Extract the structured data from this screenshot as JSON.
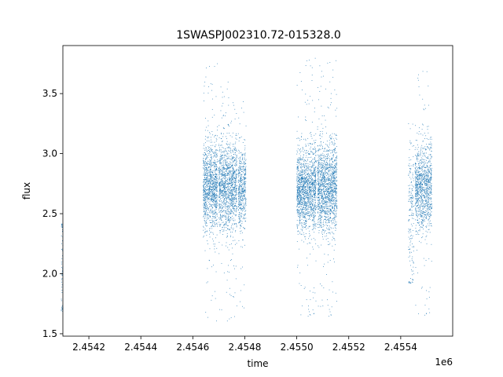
{
  "chart_data": {
    "type": "scatter",
    "title": "1SWASPJ002310.72-015328.0",
    "xlabel": "time",
    "ylabel": "flux",
    "x_offset_label": "1e6",
    "xlim": [
      2.4541,
      2.4556
    ],
    "ylim": [
      1.48,
      3.9
    ],
    "x_ticks": [
      2.4542,
      2.4544,
      2.4546,
      2.4548,
      2.455,
      2.4552,
      2.4554
    ],
    "x_tick_labels": [
      "2.4542",
      "2.4544",
      "2.4546",
      "2.4548",
      "2.4550",
      "2.4552",
      "2.4554"
    ],
    "y_ticks": [
      1.5,
      2.0,
      2.5,
      3.0,
      3.5
    ],
    "y_tick_labels": [
      "1.5",
      "2.0",
      "2.5",
      "3.0",
      "3.5"
    ],
    "grid": false,
    "marker_color": "#1f77b4",
    "clusters": [
      {
        "x_range": [
          2.454094,
          2.4541
        ],
        "y_center": 2.05,
        "y_spread": 0.35,
        "y_min": 1.68,
        "y_max": 2.43,
        "count": 60
      },
      {
        "x_range": [
          2.45464,
          2.454695
        ],
        "y_center": 2.72,
        "y_spread": 0.18,
        "y_min": 1.6,
        "y_max": 3.78,
        "count": 1100
      },
      {
        "x_range": [
          2.4547,
          2.45477
        ],
        "y_center": 2.72,
        "y_spread": 0.18,
        "y_min": 1.6,
        "y_max": 3.6,
        "count": 1300
      },
      {
        "x_range": [
          2.454775,
          2.454805
        ],
        "y_center": 2.72,
        "y_spread": 0.16,
        "y_min": 1.62,
        "y_max": 3.6,
        "count": 500
      },
      {
        "x_range": [
          2.455,
          2.455075
        ],
        "y_center": 2.7,
        "y_spread": 0.17,
        "y_min": 1.62,
        "y_max": 3.8,
        "count": 1500
      },
      {
        "x_range": [
          2.45508,
          2.455155
        ],
        "y_center": 2.72,
        "y_spread": 0.18,
        "y_min": 1.62,
        "y_max": 3.78,
        "count": 1500
      },
      {
        "x_range": [
          2.45543,
          2.45545
        ],
        "y_center": 2.5,
        "y_spread": 0.3,
        "y_min": 1.92,
        "y_max": 3.25,
        "count": 180
      },
      {
        "x_range": [
          2.455455,
          2.45552
        ],
        "y_center": 2.72,
        "y_spread": 0.18,
        "y_min": 1.63,
        "y_max": 3.75,
        "count": 1100
      }
    ]
  }
}
